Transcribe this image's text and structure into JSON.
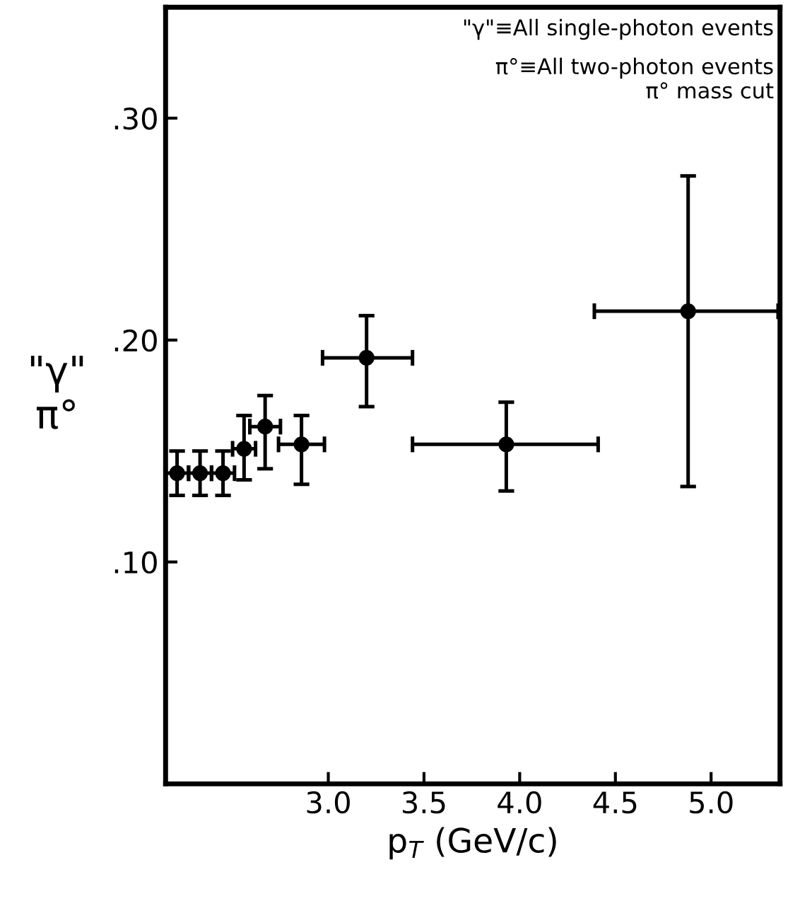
{
  "chart_data": {
    "type": "scatter",
    "xlabel": "p$_{T}$ (GeV/c)",
    "ylabel": "\"γ\"\nπ°",
    "x": [
      2.21,
      2.33,
      2.45,
      2.56,
      2.67,
      2.86,
      3.2,
      3.93,
      4.88
    ],
    "values": [
      0.14,
      0.14,
      0.14,
      0.151,
      0.161,
      0.153,
      0.192,
      0.153,
      0.213
    ],
    "errors": [
      [
        0.13,
        0.15
      ],
      [
        0.13,
        0.15
      ],
      [
        0.13,
        0.15
      ],
      [
        0.137,
        0.166
      ],
      [
        0.142,
        0.175
      ],
      [
        0.135,
        0.166
      ],
      [
        0.17,
        0.211
      ],
      [
        0.132,
        0.172
      ],
      [
        0.134,
        0.274
      ]
    ],
    "xerrors": [
      0.06,
      0.06,
      0.06,
      0.06,
      0.08,
      0.12,
      [
        2.97,
        3.44
      ],
      [
        3.44,
        4.41
      ],
      [
        4.39,
        5.35
      ]
    ],
    "color": "#000000",
    "marker": "circle",
    "xlim": [
      2.15,
      5.36
    ],
    "ylim": [
      0,
      0.35
    ],
    "xticks": [
      {
        "value": 3.0,
        "label": "3.0"
      },
      {
        "value": 3.5,
        "label": "3.5"
      },
      {
        "value": 4.0,
        "label": "4.0"
      },
      {
        "value": 4.5,
        "label": "4.5"
      },
      {
        "value": 5.0,
        "label": "5.0"
      }
    ],
    "yticks": [
      {
        "value": 0.1,
        "label": ".10"
      },
      {
        "value": 0.2,
        "label": ".20"
      },
      {
        "value": 0.3,
        "label": ".30"
      }
    ],
    "grid": false,
    "legend": false,
    "annotations": [
      "\"γ\"≡All single-photon events",
      "π°≡All two-photon events\nπ° mass cut"
    ]
  }
}
